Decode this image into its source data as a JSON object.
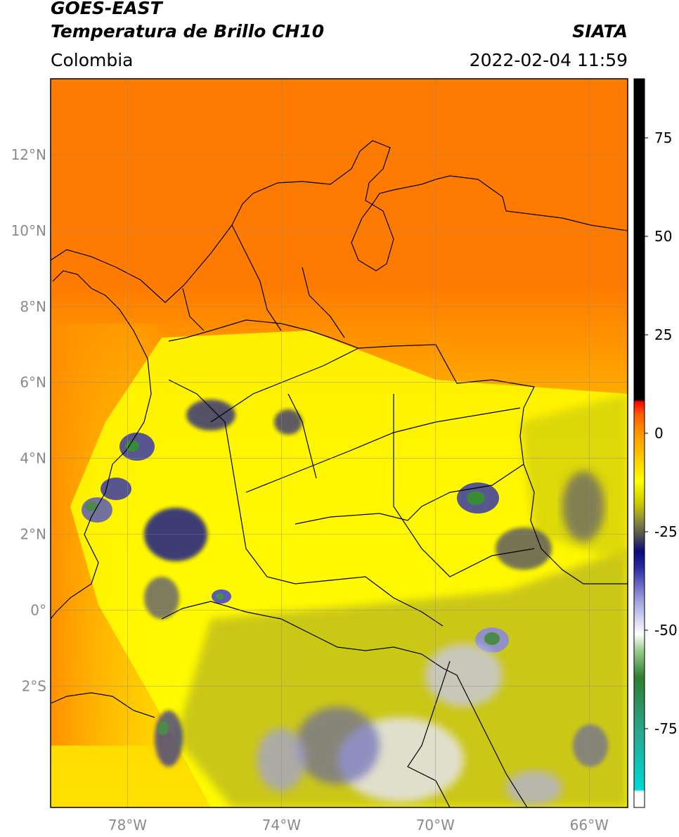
{
  "header": {
    "title_line1": "GOES-EAST",
    "title_line2": "Temperatura de Brillo CH10",
    "brand": "SIATA",
    "region": "Colombia",
    "timestamp": "2022-02-04 11:59"
  },
  "map": {
    "lon_range": [
      -80,
      -65
    ],
    "lat_range": [
      -5.2,
      14
    ],
    "lat_ticks": [
      {
        "value": 12,
        "label": "12°N"
      },
      {
        "value": 10,
        "label": "10°N"
      },
      {
        "value": 8,
        "label": "8°N"
      },
      {
        "value": 6,
        "label": "6°N"
      },
      {
        "value": 4,
        "label": "4°N"
      },
      {
        "value": 2,
        "label": "2°N"
      },
      {
        "value": 0,
        "label": "0°"
      },
      {
        "value": -2,
        "label": "2°S"
      }
    ],
    "lon_ticks": [
      {
        "value": -78,
        "label": "78°W"
      },
      {
        "value": -74,
        "label": "74°W"
      },
      {
        "value": -70,
        "label": "70°W"
      },
      {
        "value": -66,
        "label": "66°W"
      }
    ],
    "grid": true
  },
  "colorbar": {
    "range": [
      -95,
      90
    ],
    "ticks": [
      {
        "value": 75,
        "label": "75"
      },
      {
        "value": 50,
        "label": "50"
      },
      {
        "value": 25,
        "label": "25"
      },
      {
        "value": 0,
        "label": "0"
      },
      {
        "value": -25,
        "label": "-25"
      },
      {
        "value": -50,
        "label": "-50"
      },
      {
        "value": -75,
        "label": "-75"
      }
    ],
    "stops": [
      {
        "value": -95,
        "color": "#ffffff"
      },
      {
        "value": -91,
        "color": "#ffffff"
      },
      {
        "value": -90.5,
        "color": "#00d8d8"
      },
      {
        "value": -75,
        "color": "#2aa58a"
      },
      {
        "value": -62,
        "color": "#2f7d30"
      },
      {
        "value": -55,
        "color": "#9ccf8f"
      },
      {
        "value": -51,
        "color": "#ffffff"
      },
      {
        "value": -42,
        "color": "#9a9adc"
      },
      {
        "value": -34,
        "color": "#2a2aa0"
      },
      {
        "value": -30,
        "color": "#0a0a7a"
      },
      {
        "value": -26,
        "color": "#505050"
      },
      {
        "value": -22,
        "color": "#8e8e3a"
      },
      {
        "value": -18,
        "color": "#c8c800"
      },
      {
        "value": -12,
        "color": "#ffff00"
      },
      {
        "value": -6,
        "color": "#ffc800"
      },
      {
        "value": 0,
        "color": "#ff9600"
      },
      {
        "value": 5,
        "color": "#ff5a00"
      },
      {
        "value": 8,
        "color": "#ff0000"
      },
      {
        "value": 8.5,
        "color": "#000000"
      },
      {
        "value": 90,
        "color": "#000000"
      }
    ]
  }
}
